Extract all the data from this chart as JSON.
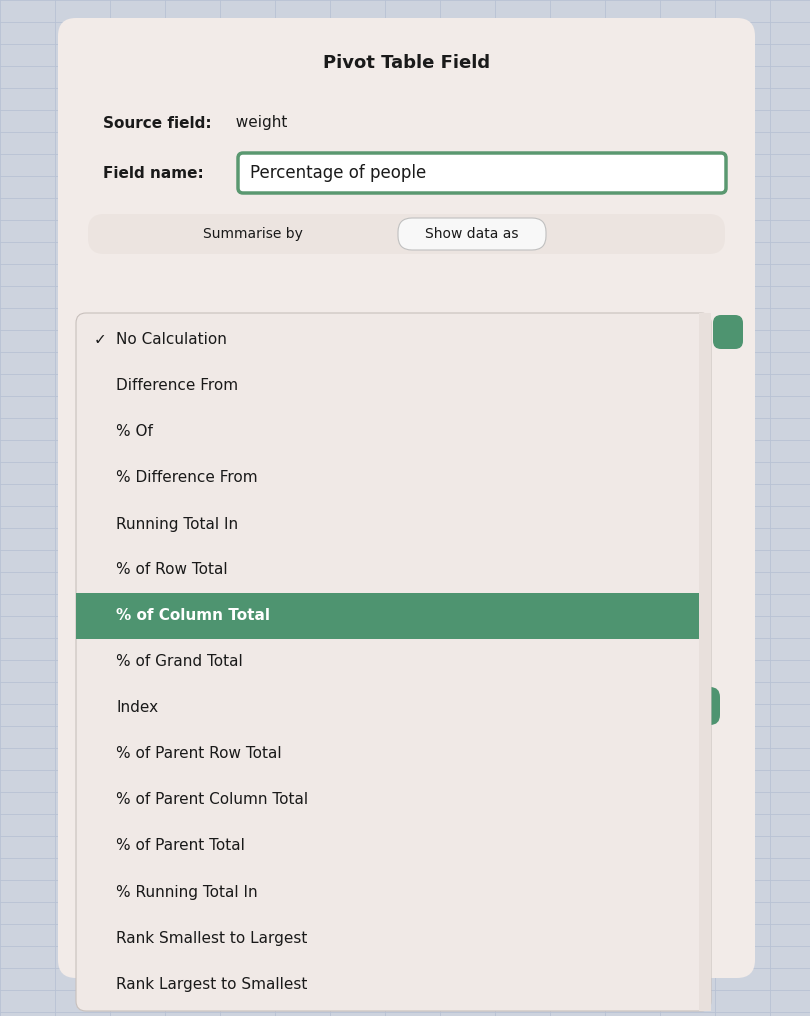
{
  "title": "Pivot Table Field",
  "source_field_label": "Source field:",
  "source_field_value": "  weight",
  "field_name_label": "Field name:",
  "field_name_value": "Percentage of people",
  "tab1": "Summarise by",
  "tab2": "Show data as",
  "menu_items": [
    {
      "text": "No Calculation",
      "check": true,
      "selected": false
    },
    {
      "text": "Difference From",
      "check": false,
      "selected": false
    },
    {
      "text": "% Of",
      "check": false,
      "selected": false
    },
    {
      "text": "% Difference From",
      "check": false,
      "selected": false
    },
    {
      "text": "Running Total In",
      "check": false,
      "selected": false
    },
    {
      "text": "% of Row Total",
      "check": false,
      "selected": false
    },
    {
      "text": "% of Column Total",
      "check": false,
      "selected": true
    },
    {
      "text": "% of Grand Total",
      "check": false,
      "selected": false
    },
    {
      "text": "Index",
      "check": false,
      "selected": false
    },
    {
      "text": "% of Parent Row Total",
      "check": false,
      "selected": false
    },
    {
      "text": "% of Parent Column Total",
      "check": false,
      "selected": false
    },
    {
      "text": "% of Parent Total",
      "check": false,
      "selected": false
    },
    {
      "text": "% Running Total In",
      "check": false,
      "selected": false
    },
    {
      "text": "Rank Smallest to Largest",
      "check": false,
      "selected": false
    },
    {
      "text": "Rank Largest to Smallest",
      "check": false,
      "selected": false
    }
  ],
  "dialog_bg": "#f2ebe8",
  "grid_bg": "#cdd3de",
  "grid_line_color": "#b8c2d4",
  "selected_item_bg": "#4e9470",
  "selected_item_text": "#ffffff",
  "normal_item_text": "#1a1a1a",
  "dropdown_bg": "#f0e9e6",
  "title_font_size": 13,
  "label_font_size": 11,
  "item_font_size": 11,
  "tab_font_size": 10,
  "field_name_font_size": 12,
  "input_border_color": "#5a9870",
  "input_bg": "#ffffff",
  "tab2_border_color": "#c0c0c0",
  "tab2_bg": "#f8f8f8",
  "dropdown_border_color": "#c8c0bc",
  "scrollbar_bg": "#e8e0dc",
  "green_btn_color": "#4e9470",
  "behind_panel_bg": "#f2ebe8"
}
